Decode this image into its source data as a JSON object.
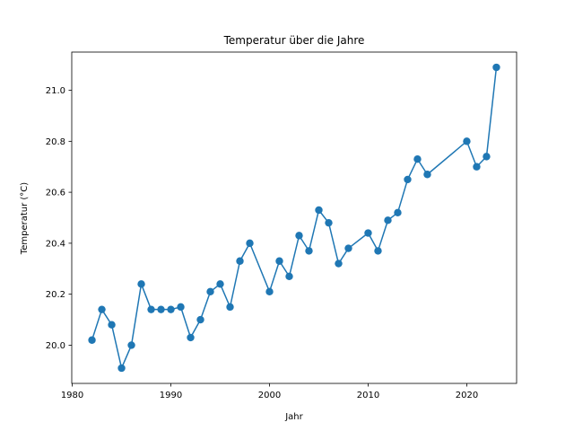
{
  "chart_data": {
    "type": "line",
    "title": "Temperatur über die Jahre",
    "xlabel": "Jahr",
    "ylabel": "Temperatur (°C)",
    "xlim": [
      1979.95,
      2025.05
    ],
    "ylim": [
      19.85,
      21.15
    ],
    "xticks": [
      1980,
      1990,
      2000,
      2010,
      2020
    ],
    "yticks": [
      20.0,
      20.2,
      20.4,
      20.6,
      20.8,
      21.0
    ],
    "xtick_labels": [
      "1980",
      "1990",
      "2000",
      "2010",
      "2020"
    ],
    "ytick_labels": [
      "20.0",
      "20.2",
      "20.4",
      "20.6",
      "20.8",
      "21.0"
    ],
    "grid": false,
    "legend": "none",
    "series": [
      {
        "color": "#1f77b4",
        "marker": "circle",
        "x": [
          1982,
          1983,
          1984,
          1985,
          1986,
          1987,
          1988,
          1989,
          1990,
          1991,
          1992,
          1993,
          1994,
          1995,
          1996,
          1997,
          1998,
          2000,
          2001,
          2002,
          2003,
          2004,
          2005,
          2006,
          2007,
          2008,
          2010,
          2011,
          2012,
          2013,
          2014,
          2015,
          2016,
          2020,
          2021,
          2022,
          2023
        ],
        "y": [
          20.02,
          20.14,
          20.08,
          19.91,
          20.0,
          20.24,
          20.14,
          20.14,
          20.14,
          20.15,
          20.03,
          20.1,
          20.21,
          20.24,
          20.15,
          20.33,
          20.4,
          20.21,
          20.33,
          20.27,
          20.43,
          20.37,
          20.53,
          20.48,
          20.32,
          20.38,
          20.44,
          20.37,
          20.49,
          20.52,
          20.65,
          20.73,
          20.67,
          20.8,
          20.7,
          20.74,
          21.09
        ]
      }
    ]
  }
}
